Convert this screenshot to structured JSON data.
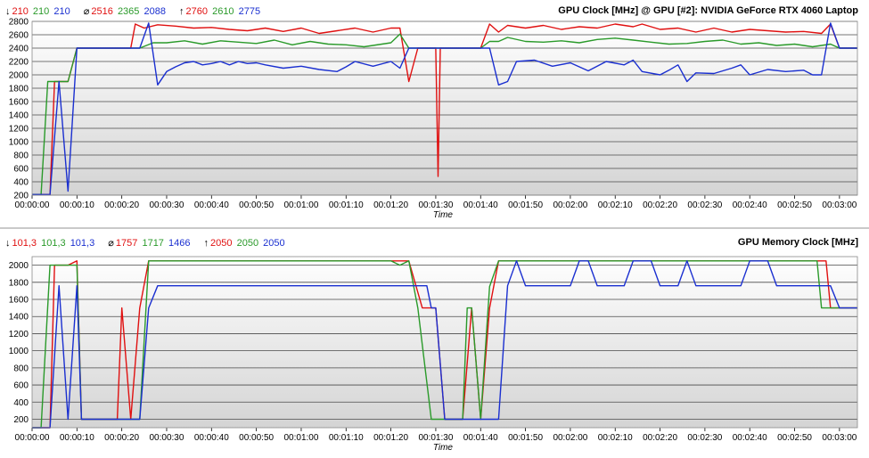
{
  "chart_data": [
    {
      "type": "line",
      "title": "GPU Clock [MHz] @ GPU [#2]: NVIDIA GeForce RTX 4060 Laptop",
      "xlabel": "Time",
      "ylabel": "",
      "ylim": [
        200,
        2800
      ],
      "yticks": [
        200,
        400,
        600,
        800,
        1000,
        1200,
        1400,
        1600,
        1800,
        2000,
        2200,
        2400,
        2600,
        2800
      ],
      "xlim": [
        0,
        184
      ],
      "xticks": [
        "00:00:00",
        "00:00:10",
        "00:00:20",
        "00:00:30",
        "00:00:40",
        "00:00:50",
        "00:01:00",
        "00:01:10",
        "00:01:20",
        "00:01:30",
        "00:01:40",
        "00:01:50",
        "00:02:00",
        "00:02:10",
        "00:02:20",
        "00:02:30",
        "00:02:40",
        "00:02:50",
        "00:03:00"
      ],
      "grid": true,
      "stats": {
        "min": {
          "glyph": "↓",
          "red": "210",
          "green": "210",
          "blue": "210"
        },
        "avg": {
          "glyph": "⌀",
          "red": "2516",
          "green": "2365",
          "blue": "2088"
        },
        "max": {
          "glyph": "↑",
          "red": "2760",
          "green": "2610",
          "blue": "2775"
        }
      },
      "series": [
        {
          "color": "#e01010",
          "points": [
            [
              0,
              210
            ],
            [
              4,
              210
            ],
            [
              5,
              1900
            ],
            [
              7,
              1900
            ],
            [
              8,
              1900
            ],
            [
              10,
              2400
            ],
            [
              22,
              2400
            ],
            [
              23,
              2760
            ],
            [
              25,
              2700
            ],
            [
              28,
              2750
            ],
            [
              32,
              2730
            ],
            [
              36,
              2700
            ],
            [
              40,
              2710
            ],
            [
              44,
              2680
            ],
            [
              48,
              2660
            ],
            [
              52,
              2700
            ],
            [
              56,
              2650
            ],
            [
              60,
              2700
            ],
            [
              64,
              2620
            ],
            [
              68,
              2660
            ],
            [
              72,
              2700
            ],
            [
              76,
              2640
            ],
            [
              80,
              2700
            ],
            [
              82,
              2700
            ],
            [
              84,
              1900
            ],
            [
              86,
              2400
            ],
            [
              90,
              2400
            ],
            [
              90.5,
              480
            ],
            [
              91,
              2400
            ],
            [
              100,
              2400
            ],
            [
              102,
              2760
            ],
            [
              104,
              2640
            ],
            [
              106,
              2740
            ],
            [
              110,
              2700
            ],
            [
              114,
              2740
            ],
            [
              118,
              2680
            ],
            [
              122,
              2720
            ],
            [
              126,
              2700
            ],
            [
              130,
              2760
            ],
            [
              134,
              2720
            ],
            [
              136,
              2760
            ],
            [
              140,
              2680
            ],
            [
              144,
              2700
            ],
            [
              148,
              2640
            ],
            [
              152,
              2700
            ],
            [
              156,
              2640
            ],
            [
              160,
              2680
            ],
            [
              164,
              2660
            ],
            [
              168,
              2640
            ],
            [
              172,
              2650
            ],
            [
              176,
              2620
            ],
            [
              178,
              2760
            ],
            [
              180,
              2400
            ],
            [
              184,
              2400
            ]
          ]
        },
        {
          "color": "#2a9a2a",
          "points": [
            [
              0,
              210
            ],
            [
              2,
              210
            ],
            [
              3.5,
              1900
            ],
            [
              7,
              1900
            ],
            [
              8,
              1900
            ],
            [
              10,
              2400
            ],
            [
              24,
              2400
            ],
            [
              27,
              2480
            ],
            [
              30,
              2480
            ],
            [
              34,
              2510
            ],
            [
              38,
              2460
            ],
            [
              42,
              2510
            ],
            [
              46,
              2490
            ],
            [
              50,
              2470
            ],
            [
              54,
              2520
            ],
            [
              58,
              2450
            ],
            [
              62,
              2500
            ],
            [
              66,
              2460
            ],
            [
              70,
              2450
            ],
            [
              74,
              2420
            ],
            [
              78,
              2460
            ],
            [
              80,
              2480
            ],
            [
              82,
              2610
            ],
            [
              84,
              2400
            ],
            [
              100,
              2400
            ],
            [
              102,
              2500
            ],
            [
              104,
              2500
            ],
            [
              106,
              2560
            ],
            [
              110,
              2500
            ],
            [
              114,
              2490
            ],
            [
              118,
              2510
            ],
            [
              122,
              2480
            ],
            [
              126,
              2530
            ],
            [
              130,
              2550
            ],
            [
              134,
              2520
            ],
            [
              138,
              2490
            ],
            [
              142,
              2460
            ],
            [
              146,
              2470
            ],
            [
              150,
              2500
            ],
            [
              154,
              2520
            ],
            [
              158,
              2460
            ],
            [
              162,
              2480
            ],
            [
              166,
              2440
            ],
            [
              170,
              2460
            ],
            [
              174,
              2420
            ],
            [
              178,
              2460
            ],
            [
              180,
              2400
            ],
            [
              184,
              2400
            ]
          ]
        },
        {
          "color": "#1a2fd0",
          "points": [
            [
              0,
              210
            ],
            [
              4,
              210
            ],
            [
              6,
              1900
            ],
            [
              8,
              260
            ],
            [
              10,
              2400
            ],
            [
              24,
              2400
            ],
            [
              26,
              2775
            ],
            [
              28,
              1850
            ],
            [
              30,
              2050
            ],
            [
              32,
              2120
            ],
            [
              34,
              2180
            ],
            [
              36,
              2200
            ],
            [
              38,
              2150
            ],
            [
              40,
              2170
            ],
            [
              42,
              2200
            ],
            [
              44,
              2150
            ],
            [
              46,
              2200
            ],
            [
              48,
              2170
            ],
            [
              50,
              2180
            ],
            [
              52,
              2150
            ],
            [
              56,
              2100
            ],
            [
              60,
              2130
            ],
            [
              64,
              2080
            ],
            [
              68,
              2050
            ],
            [
              70,
              2120
            ],
            [
              72,
              2200
            ],
            [
              76,
              2130
            ],
            [
              80,
              2200
            ],
            [
              82,
              2100
            ],
            [
              84,
              2400
            ],
            [
              100,
              2400
            ],
            [
              102,
              2400
            ],
            [
              104,
              1850
            ],
            [
              106,
              1900
            ],
            [
              108,
              2200
            ],
            [
              112,
              2220
            ],
            [
              116,
              2130
            ],
            [
              120,
              2180
            ],
            [
              124,
              2060
            ],
            [
              128,
              2200
            ],
            [
              132,
              2150
            ],
            [
              134,
              2220
            ],
            [
              136,
              2050
            ],
            [
              140,
              2000
            ],
            [
              142,
              2070
            ],
            [
              144,
              2150
            ],
            [
              146,
              1900
            ],
            [
              148,
              2030
            ],
            [
              152,
              2020
            ],
            [
              156,
              2100
            ],
            [
              158,
              2150
            ],
            [
              160,
              2000
            ],
            [
              164,
              2080
            ],
            [
              168,
              2050
            ],
            [
              172,
              2070
            ],
            [
              174,
              2000
            ],
            [
              176,
              2000
            ],
            [
              178,
              2775
            ],
            [
              180,
              2400
            ],
            [
              184,
              2400
            ]
          ]
        }
      ]
    },
    {
      "type": "line",
      "title": "GPU Memory Clock [MHz]",
      "xlabel": "Time",
      "ylabel": "",
      "ylim": [
        101,
        2100
      ],
      "yticks": [
        200,
        400,
        600,
        800,
        1000,
        1200,
        1400,
        1600,
        1800,
        2000
      ],
      "xlim": [
        0,
        184
      ],
      "xticks": [
        "00:00:00",
        "00:00:10",
        "00:00:20",
        "00:00:30",
        "00:00:40",
        "00:00:50",
        "00:01:00",
        "00:01:10",
        "00:01:20",
        "00:01:30",
        "00:01:40",
        "00:01:50",
        "00:02:00",
        "00:02:10",
        "00:02:20",
        "00:02:30",
        "00:02:40",
        "00:02:50",
        "00:03:00"
      ],
      "grid": true,
      "stats": {
        "min": {
          "glyph": "↓",
          "red": "101,3",
          "green": "101,3",
          "blue": "101,3"
        },
        "avg": {
          "glyph": "⌀",
          "red": "1757",
          "green": "1717",
          "blue": "1466"
        },
        "max": {
          "glyph": "↑",
          "red": "2050",
          "green": "2050",
          "blue": "2050"
        }
      },
      "series": [
        {
          "color": "#e01010",
          "points": [
            [
              0,
              101.3
            ],
            [
              4,
              101.3
            ],
            [
              5,
              2000
            ],
            [
              7,
              2000
            ],
            [
              8,
              2000
            ],
            [
              10,
              2050
            ],
            [
              11,
              200
            ],
            [
              19,
              200
            ],
            [
              20,
              1500
            ],
            [
              22,
              200
            ],
            [
              24,
              1500
            ],
            [
              26,
              2050
            ],
            [
              84,
              2050
            ],
            [
              87,
              1500
            ],
            [
              88,
              1500
            ],
            [
              90,
              1500
            ],
            [
              92,
              200
            ],
            [
              96,
              200
            ],
            [
              98,
              1500
            ],
            [
              100,
              200
            ],
            [
              102,
              1500
            ],
            [
              104,
              2050
            ],
            [
              175,
              2050
            ],
            [
              177,
              2050
            ],
            [
              178,
              1500
            ],
            [
              184,
              1500
            ]
          ]
        },
        {
          "color": "#2a9a2a",
          "points": [
            [
              0,
              101.3
            ],
            [
              2,
              101.3
            ],
            [
              4,
              2000
            ],
            [
              7,
              2000
            ],
            [
              8,
              2000
            ],
            [
              10,
              2000
            ],
            [
              11,
              200
            ],
            [
              24,
              200
            ],
            [
              26,
              2050
            ],
            [
              80,
              2050
            ],
            [
              82,
              2000
            ],
            [
              84,
              2050
            ],
            [
              86,
              1500
            ],
            [
              89,
              200
            ],
            [
              96,
              200
            ],
            [
              97,
              1500
            ],
            [
              98,
              1500
            ],
            [
              100,
              200
            ],
            [
              102,
              1750
            ],
            [
              104,
              2050
            ],
            [
              175,
              2050
            ],
            [
              176,
              1500
            ],
            [
              178,
              1500
            ],
            [
              184,
              1500
            ]
          ]
        },
        {
          "color": "#1a2fd0",
          "points": [
            [
              0,
              101.3
            ],
            [
              4,
              101.3
            ],
            [
              6,
              1760
            ],
            [
              8,
              200
            ],
            [
              10,
              1760
            ],
            [
              11,
              200
            ],
            [
              24,
              200
            ],
            [
              26,
              1500
            ],
            [
              28,
              1760
            ],
            [
              60,
              1760
            ],
            [
              85,
              1760
            ],
            [
              88,
              1760
            ],
            [
              89,
              1500
            ],
            [
              90,
              1500
            ],
            [
              92,
              200
            ],
            [
              104,
              200
            ],
            [
              106,
              1760
            ],
            [
              108,
              2050
            ],
            [
              110,
              1760
            ],
            [
              120,
              1760
            ],
            [
              122,
              2050
            ],
            [
              124,
              2050
            ],
            [
              126,
              1760
            ],
            [
              132,
              1760
            ],
            [
              134,
              2050
            ],
            [
              138,
              2050
            ],
            [
              140,
              1760
            ],
            [
              144,
              1760
            ],
            [
              146,
              2050
            ],
            [
              148,
              1760
            ],
            [
              158,
              1760
            ],
            [
              160,
              2050
            ],
            [
              164,
              2050
            ],
            [
              166,
              1760
            ],
            [
              178,
              1760
            ],
            [
              180,
              1500
            ],
            [
              184,
              1500
            ]
          ]
        }
      ]
    }
  ]
}
